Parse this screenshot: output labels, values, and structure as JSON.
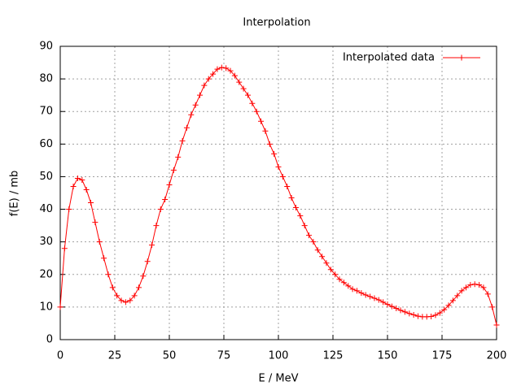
{
  "chart_data": {
    "type": "line",
    "title": "Interpolation",
    "x_label": "E / MeV",
    "y_label": "f(E) / mb",
    "x": [
      0,
      2,
      4,
      6,
      8,
      10,
      12,
      14,
      16,
      18,
      20,
      22,
      24,
      26,
      28,
      30,
      32,
      34,
      36,
      38,
      40,
      42,
      44,
      46,
      48,
      50,
      52,
      54,
      56,
      58,
      60,
      62,
      64,
      66,
      68,
      70,
      72,
      74,
      76,
      78,
      80,
      82,
      84,
      86,
      88,
      90,
      92,
      94,
      96,
      98,
      100,
      102,
      104,
      106,
      108,
      110,
      112,
      114,
      116,
      118,
      120,
      122,
      124,
      126,
      128,
      130,
      132,
      134,
      136,
      138,
      140,
      142,
      144,
      146,
      148,
      150,
      152,
      154,
      156,
      158,
      160,
      162,
      164,
      166,
      168,
      170,
      172,
      174,
      176,
      178,
      180,
      182,
      184,
      186,
      188,
      190,
      192,
      194,
      196,
      198,
      200
    ],
    "series": [
      {
        "name": "Interpolated data",
        "color": "#ff0000",
        "values": [
          10,
          28,
          40,
          47,
          49.5,
          49,
          46,
          42,
          36,
          30,
          25,
          20,
          16,
          13.5,
          12,
          11.5,
          12,
          13.5,
          16,
          19.5,
          24,
          29,
          35,
          40,
          43,
          47.5,
          52,
          56,
          61,
          65,
          69,
          72,
          75,
          78,
          80,
          81.5,
          83,
          83.5,
          83.3,
          82.5,
          81,
          79,
          77,
          75,
          72.5,
          70,
          67,
          64,
          60,
          57,
          53,
          50,
          47,
          43.5,
          40.5,
          38,
          35,
          32,
          30,
          27.5,
          25.5,
          23.5,
          21.5,
          20,
          18.5,
          17.5,
          16.5,
          15.5,
          15,
          14.3,
          13.7,
          13.2,
          12.7,
          12.2,
          11.5,
          10.8,
          10.2,
          9.6,
          9,
          8.5,
          8,
          7.6,
          7.2,
          7,
          7,
          7.1,
          7.5,
          8.2,
          9.2,
          10.5,
          12,
          13.5,
          15,
          16,
          16.8,
          17,
          16.8,
          16,
          14,
          10,
          4.5
        ]
      }
    ],
    "xlim": [
      0,
      200
    ],
    "xticks": [
      0,
      25,
      50,
      75,
      100,
      125,
      150,
      175,
      200
    ],
    "ylim": [
      0,
      90
    ],
    "yticks": [
      0,
      10,
      20,
      30,
      40,
      50,
      60,
      70,
      80,
      90
    ],
    "grid": true,
    "legend": "top-right"
  }
}
